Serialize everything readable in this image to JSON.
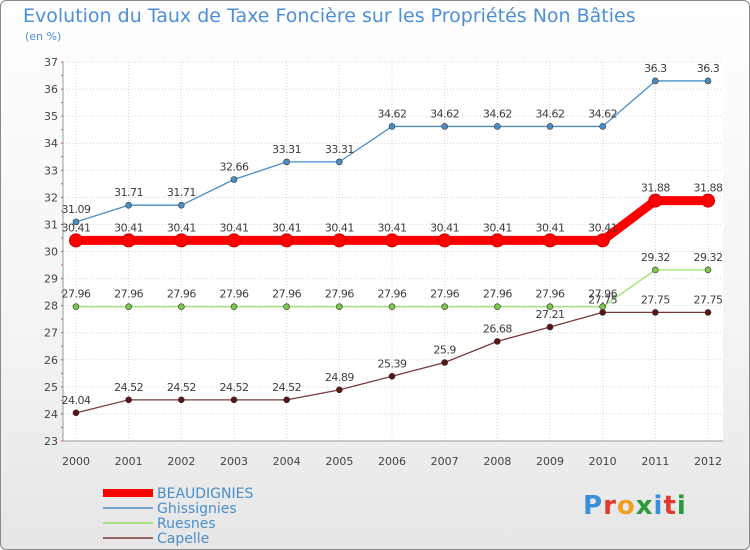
{
  "header": {
    "title": "Evolution du Taux de Taxe Foncière sur les Propriétés Non Bâties",
    "unit": "(en %)"
  },
  "brand": {
    "logo_text": "Proxiti",
    "letter_colors": [
      "#3a8fd8",
      "#e03a2e",
      "#f0a020",
      "#2a9a3a",
      "#3a8fd8",
      "#e03a2e",
      "#2a9a3a"
    ]
  },
  "chart_data": {
    "type": "line",
    "x": [
      "2000",
      "2001",
      "2002",
      "2003",
      "2004",
      "2005",
      "2006",
      "2007",
      "2008",
      "2009",
      "2010",
      "2011",
      "2012"
    ],
    "ylim": [
      23,
      37
    ],
    "yticks": [
      23,
      24,
      25,
      26,
      27,
      28,
      29,
      30,
      31,
      32,
      33,
      34,
      35,
      36,
      37
    ],
    "grid": true,
    "legend_position": "bottom-left",
    "series": [
      {
        "name": "BEAUDIGNIES",
        "color": "#ff0000",
        "values": [
          30.41,
          30.41,
          30.41,
          30.41,
          30.41,
          30.41,
          30.41,
          30.41,
          30.41,
          30.41,
          30.41,
          31.88,
          31.88
        ]
      },
      {
        "name": "Ghissignies",
        "color": "#4a8ec8",
        "values": [
          31.09,
          31.71,
          31.71,
          32.66,
          33.31,
          33.31,
          34.62,
          34.62,
          34.62,
          34.62,
          34.62,
          36.3,
          36.3
        ]
      },
      {
        "name": "Ruesnes",
        "color": "#88d858",
        "values": [
          27.96,
          27.96,
          27.96,
          27.96,
          27.96,
          27.96,
          27.96,
          27.96,
          27.96,
          27.96,
          27.96,
          29.32,
          29.32
        ]
      },
      {
        "name": "Capelle",
        "color": "#6b1a1a",
        "values": [
          24.04,
          24.52,
          24.52,
          24.52,
          24.52,
          24.89,
          25.39,
          25.9,
          26.68,
          27.21,
          27.75,
          27.75,
          27.75
        ]
      }
    ]
  }
}
